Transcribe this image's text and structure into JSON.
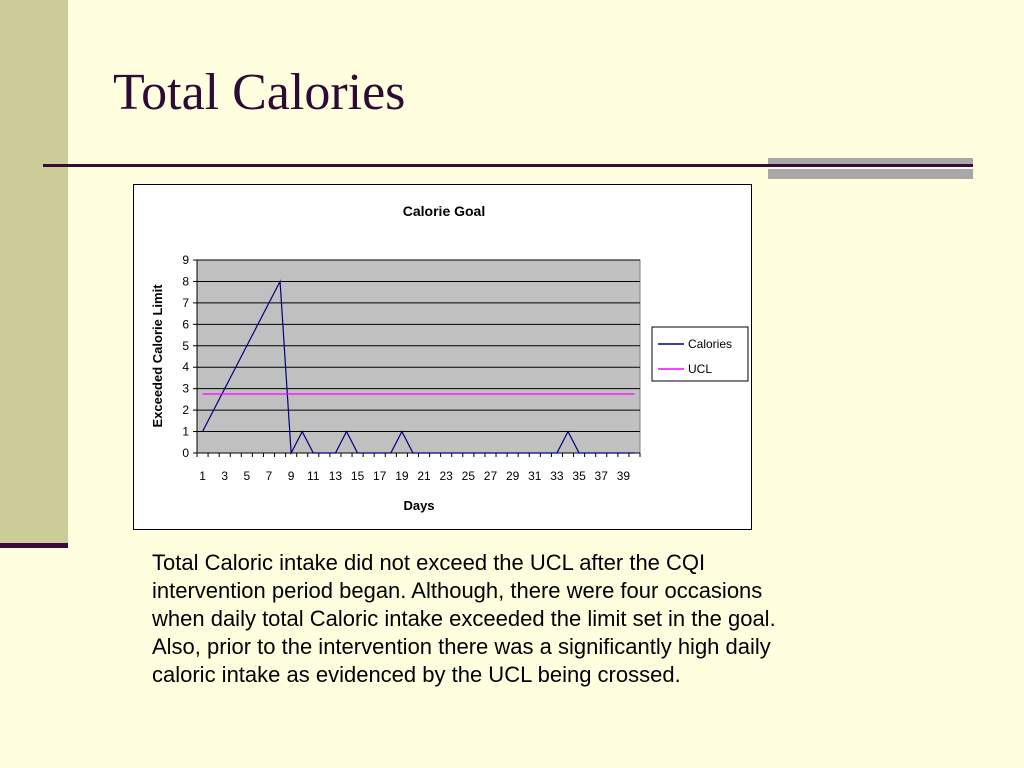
{
  "slide": {
    "title": "Total Calories",
    "body_lines": [
      "Total Caloric intake did not exceed the UCL after the CQI",
      "intervention period began.  Although, there were four occasions",
      "when daily total Caloric intake exceeded the limit set in the goal.",
      "Also, prior to the intervention there was a significantly high daily",
      "caloric intake as evidenced by the UCL being crossed."
    ]
  },
  "colors": {
    "background": "#ffffe0",
    "side_band": "#cccc99",
    "title": "#2e0b35",
    "plot_area": "#c0c0c0",
    "calories_line": "#000080",
    "ucl_line": "#ff00ff"
  },
  "chart_data": {
    "type": "line",
    "title": "Calorie Goal",
    "xlabel": "Days",
    "ylabel": "Exceeded Calorie Limit",
    "x": [
      1,
      2,
      3,
      4,
      5,
      6,
      7,
      8,
      9,
      10,
      11,
      12,
      13,
      14,
      15,
      16,
      17,
      18,
      19,
      20,
      21,
      22,
      23,
      24,
      25,
      26,
      27,
      28,
      29,
      30,
      31,
      32,
      33,
      34,
      35,
      36,
      37,
      38,
      39,
      40
    ],
    "x_tick_labels": [
      "1",
      "3",
      "5",
      "7",
      "9",
      "11",
      "13",
      "15",
      "17",
      "19",
      "21",
      "23",
      "25",
      "27",
      "29",
      "31",
      "33",
      "35",
      "37",
      "39"
    ],
    "ylim": [
      0,
      9
    ],
    "y_ticks": [
      0,
      1,
      2,
      3,
      4,
      5,
      6,
      7,
      8,
      9
    ],
    "grid": true,
    "legend_position": "right",
    "series": [
      {
        "name": "Calories",
        "color": "#000080",
        "values": [
          1,
          2,
          3,
          4,
          5,
          6,
          7,
          8,
          0,
          1,
          0,
          0,
          0,
          1,
          0,
          0,
          0,
          0,
          1,
          0,
          0,
          0,
          0,
          0,
          0,
          0,
          0,
          0,
          0,
          0,
          0,
          0,
          0,
          1,
          0,
          0,
          0,
          0,
          0,
          0
        ]
      },
      {
        "name": "UCL",
        "color": "#ff00ff",
        "values": [
          2.75,
          2.75,
          2.75,
          2.75,
          2.75,
          2.75,
          2.75,
          2.75,
          2.75,
          2.75,
          2.75,
          2.75,
          2.75,
          2.75,
          2.75,
          2.75,
          2.75,
          2.75,
          2.75,
          2.75,
          2.75,
          2.75,
          2.75,
          2.75,
          2.75,
          2.75,
          2.75,
          2.75,
          2.75,
          2.75,
          2.75,
          2.75,
          2.75,
          2.75,
          2.75,
          2.75,
          2.75,
          2.75,
          2.75,
          2.75
        ]
      }
    ]
  }
}
